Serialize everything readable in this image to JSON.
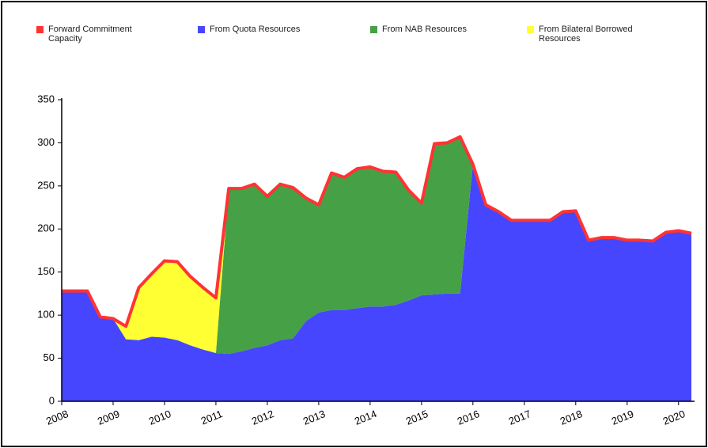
{
  "chart_data": {
    "type": "area",
    "x": [
      2008,
      2008.25,
      2008.5,
      2008.75,
      2009,
      2009.25,
      2009.5,
      2009.75,
      2010,
      2010.25,
      2010.5,
      2010.75,
      2011,
      2011.25,
      2011.5,
      2011.75,
      2012,
      2012.25,
      2012.5,
      2012.75,
      2013,
      2013.25,
      2013.5,
      2013.75,
      2014,
      2014.25,
      2014.5,
      2014.75,
      2015,
      2015.25,
      2015.5,
      2015.75,
      2016,
      2016.25,
      2016.5,
      2016.75,
      2017,
      2017.25,
      2017.5,
      2017.75,
      2018,
      2018.25,
      2018.5,
      2018.75,
      2019,
      2019.25,
      2019.5,
      2019.75,
      2020,
      2020.25
    ],
    "series": [
      {
        "name": "Forward Commitment Capacity",
        "color": "#ff3333",
        "kind": "line",
        "values": [
          128,
          128,
          128,
          98,
          96,
          87,
          132,
          148,
          163,
          162,
          145,
          132,
          120,
          247,
          247,
          252,
          238,
          252,
          248,
          236,
          228,
          265,
          260,
          270,
          272,
          267,
          266,
          245,
          230,
          299,
          300,
          307,
          275,
          228,
          220,
          210,
          210,
          210,
          210,
          220,
          221,
          187,
          190,
          190,
          187,
          187,
          186,
          196,
          198,
          195
        ]
      },
      {
        "name": "From Quota Resources",
        "color": "#4646ff",
        "kind": "area",
        "values": [
          128,
          128,
          128,
          98,
          96,
          72,
          71,
          75,
          74,
          71,
          65,
          60,
          56,
          55,
          58,
          62,
          65,
          71,
          73,
          93,
          103,
          106,
          106,
          108,
          110,
          110,
          112,
          117,
          123,
          124,
          125,
          125,
          275,
          228,
          220,
          210,
          210,
          210,
          210,
          220,
          221,
          187,
          190,
          190,
          187,
          187,
          186,
          196,
          198,
          195
        ]
      },
      {
        "name": "From NAB Resources",
        "color": "#46a046",
        "kind": "area",
        "values": [
          0,
          0,
          0,
          0,
          0,
          0,
          0,
          0,
          0,
          0,
          0,
          0,
          0,
          192,
          189,
          190,
          173,
          181,
          175,
          143,
          125,
          159,
          154,
          162,
          162,
          157,
          154,
          128,
          107,
          175,
          175,
          182,
          0,
          0,
          0,
          0,
          0,
          0,
          0,
          0,
          0,
          0,
          0,
          0,
          0,
          0,
          0,
          0,
          0,
          0
        ]
      },
      {
        "name": "From Bilateral Borrowed Resources",
        "color": "#ffff33",
        "kind": "area",
        "values": [
          0,
          0,
          0,
          0,
          0,
          15,
          61,
          73,
          89,
          91,
          80,
          72,
          64,
          0,
          0,
          0,
          0,
          0,
          0,
          0,
          0,
          0,
          0,
          0,
          0,
          0,
          0,
          0,
          0,
          0,
          0,
          0,
          0,
          0,
          0,
          0,
          0,
          0,
          0,
          0,
          0,
          0,
          0,
          0,
          0,
          0,
          0,
          0,
          0,
          0
        ]
      }
    ],
    "xlim": [
      2008,
      2020.25
    ],
    "xticks": [
      2008,
      2009,
      2010,
      2011,
      2012,
      2013,
      2014,
      2015,
      2016,
      2017,
      2018,
      2019,
      2020
    ],
    "ylim": [
      0,
      350
    ],
    "yticks": [
      0,
      50,
      100,
      150,
      200,
      250,
      300,
      350
    ],
    "grid": false
  }
}
